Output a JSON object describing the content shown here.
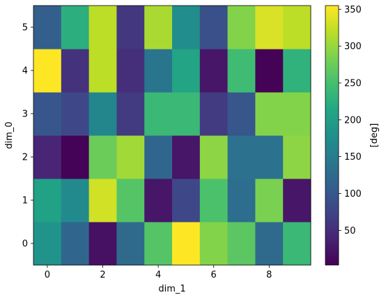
{
  "chart_data": {
    "type": "heatmap",
    "title": "",
    "xlabel": "dim_1",
    "ylabel": "dim_0",
    "colorbar_label": "[deg]",
    "colormap": "viridis",
    "x_ticks": [
      "0",
      "2",
      "4",
      "6",
      "8"
    ],
    "y_ticks": [
      "0",
      "1",
      "2",
      "3",
      "4",
      "5"
    ],
    "colorbar_ticks": [
      "50",
      "100",
      "150",
      "200",
      "250",
      "300",
      "350"
    ],
    "vmin": 3,
    "vmax": 355,
    "columns": [
      0,
      1,
      2,
      3,
      4,
      5,
      6,
      7,
      8,
      9
    ],
    "rows": [
      0,
      1,
      2,
      3,
      4,
      5
    ],
    "values": [
      [
        185,
        120,
        20,
        125,
        260,
        355,
        290,
        265,
        125,
        240
      ],
      [
        205,
        170,
        330,
        260,
        25,
        80,
        255,
        130,
        285,
        25
      ],
      [
        40,
        5,
        275,
        305,
        120,
        25,
        295,
        135,
        135,
        295
      ],
      [
        100,
        80,
        165,
        65,
        240,
        240,
        65,
        100,
        290,
        290
      ],
      [
        355,
        55,
        320,
        50,
        140,
        210,
        25,
        245,
        5,
        230
      ],
      [
        110,
        225,
        320,
        60,
        310,
        175,
        90,
        290,
        335,
        320
      ]
    ]
  }
}
